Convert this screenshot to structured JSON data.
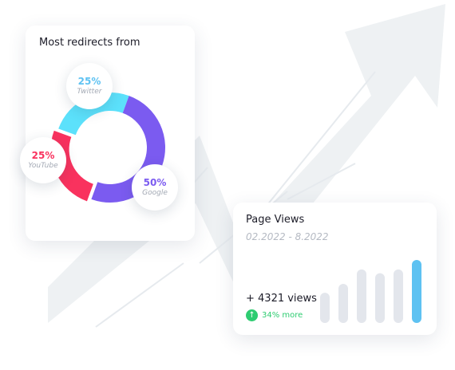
{
  "chart_data": [
    {
      "type": "pie",
      "title": "Most redirects from",
      "slices": [
        {
          "name": "Twitter",
          "value": 25,
          "label": "25%",
          "color": "#5ce1fb"
        },
        {
          "name": "Google",
          "value": 50,
          "label": "50%",
          "color": "#7b5bf0"
        },
        {
          "name": "YouTube",
          "value": 25,
          "label": "25%",
          "color": "#f9325e"
        }
      ]
    },
    {
      "type": "bar",
      "title": "Page Views",
      "subtitle": "02.2022 - 8.2022",
      "categories": [
        "",
        "",
        "",
        "",
        "",
        ""
      ],
      "values": [
        0.48,
        0.62,
        0.85,
        0.79,
        0.85,
        1.0
      ],
      "highlight_index": 5,
      "bar_color": "#e3e6ec",
      "highlight_color": "#5ec2f2",
      "ylim": [
        0,
        1
      ]
    }
  ],
  "page_views": {
    "count_text": "+ 4321 views",
    "trend_text": "34% more",
    "trend_icon": "arrow-up-icon",
    "trend_color": "#2ecc71"
  },
  "labels": {
    "twitter_color": "#5ec2f2",
    "youtube_color": "#f9325e",
    "google_color": "#7b5bf0"
  }
}
